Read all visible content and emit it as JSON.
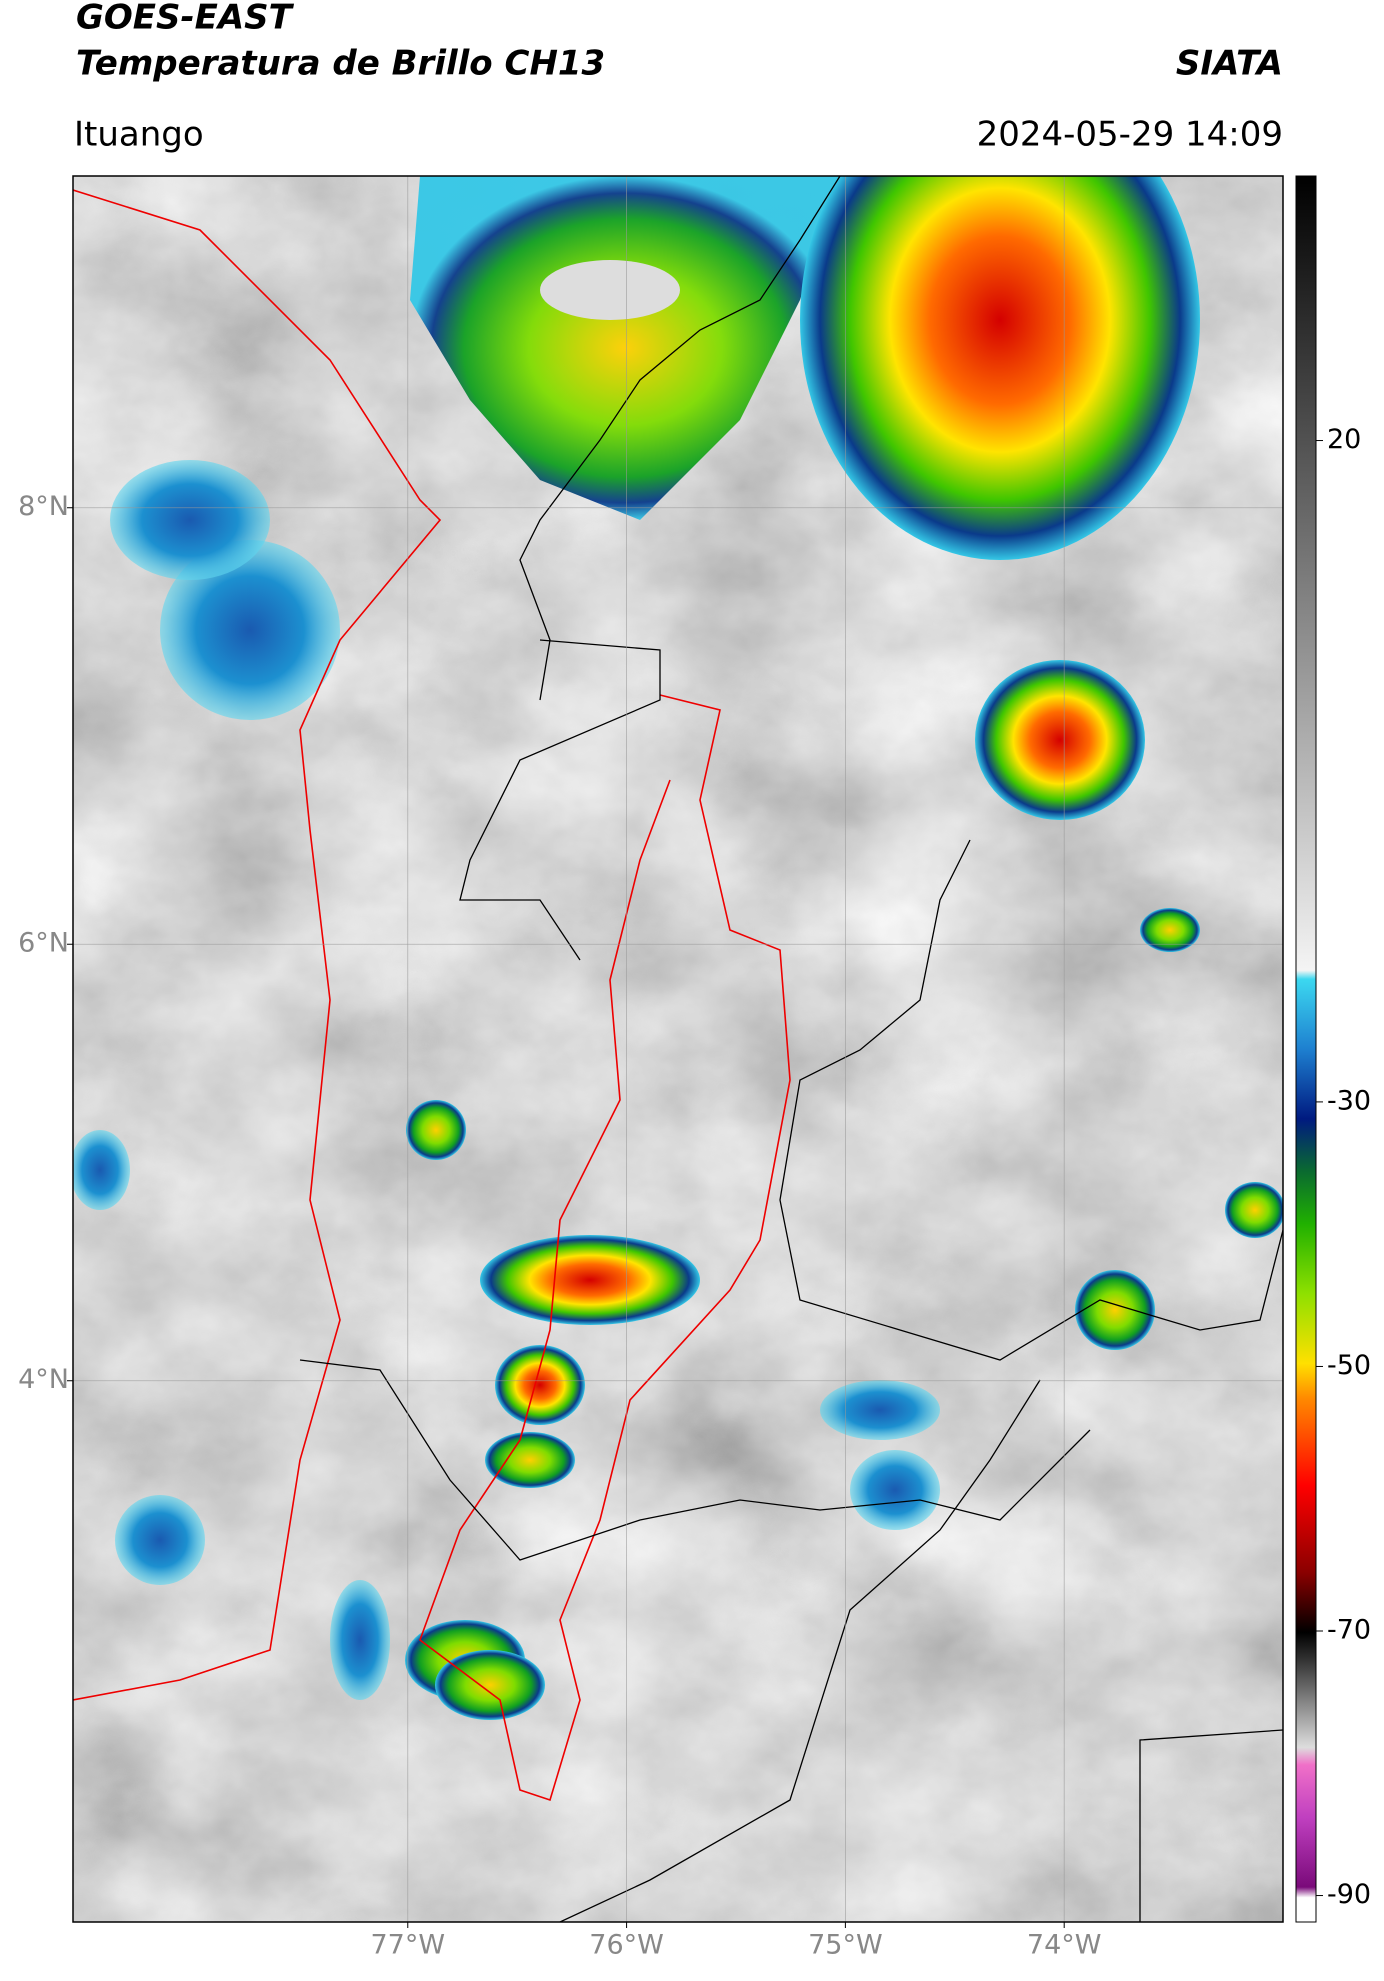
{
  "header": {
    "satellite": "GOES-EAST",
    "product": "Temperatura de Brillo CH13",
    "source": "SIATA",
    "location": "Ituango",
    "datetime": "2024-05-29 14:09"
  },
  "map": {
    "lonlim": [
      -78.53,
      -73.0
    ],
    "latlim": [
      1.52,
      9.52
    ],
    "lat_ticks": [
      {
        "value": 8,
        "label": "8°N"
      },
      {
        "value": 6,
        "label": "6°N"
      },
      {
        "value": 4,
        "label": "4°N"
      }
    ],
    "lon_ticks": [
      {
        "value": -77,
        "label": "77°W"
      },
      {
        "value": -76,
        "label": "76°W"
      },
      {
        "value": -75,
        "label": "75°W"
      },
      {
        "value": -74,
        "label": "74°W"
      }
    ]
  },
  "colorbar": {
    "lim": [
      -92,
      40
    ],
    "ticks": [
      20,
      -30,
      -50,
      -70,
      -90
    ]
  }
}
